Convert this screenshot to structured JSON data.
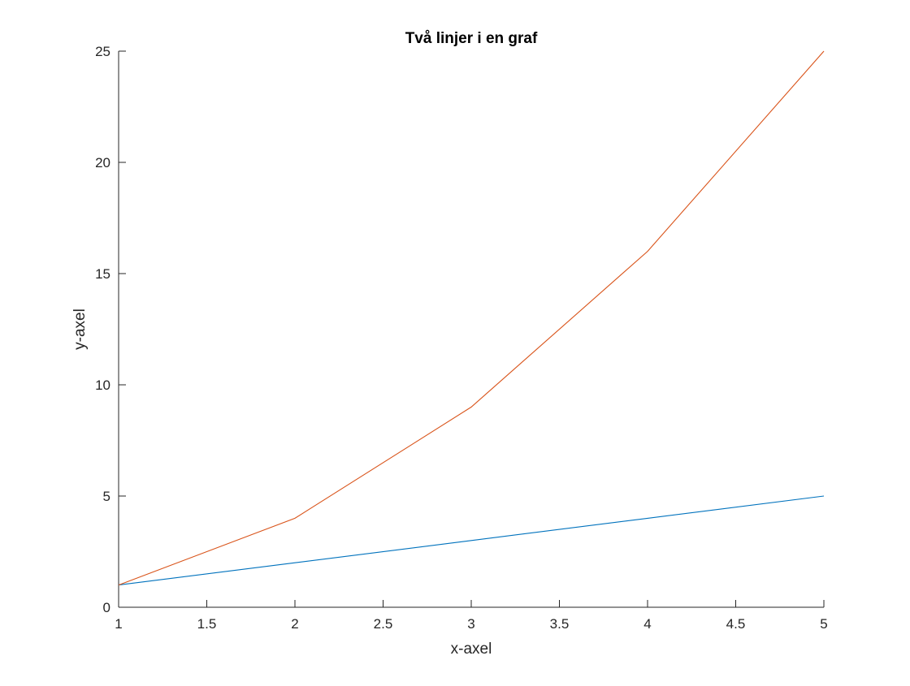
{
  "chart_data": {
    "type": "line",
    "title": "Två linjer i en graf",
    "xlabel": "x-axel",
    "ylabel": "y-axel",
    "xlim": [
      1,
      5
    ],
    "ylim": [
      0,
      25
    ],
    "x": [
      1,
      2,
      3,
      4,
      5
    ],
    "series": [
      {
        "values": [
          1,
          2,
          3,
          4,
          5
        ],
        "color": "#0072BD"
      },
      {
        "values": [
          1,
          4,
          9,
          16,
          25
        ],
        "color": "#D95319"
      }
    ],
    "x_ticks": [
      "1",
      "1.5",
      "2",
      "2.5",
      "3",
      "3.5",
      "4",
      "4.5",
      "5"
    ],
    "y_ticks": [
      "0",
      "5",
      "10",
      "15",
      "20",
      "25"
    ],
    "grid": false,
    "box": "left-bottom axes only"
  }
}
